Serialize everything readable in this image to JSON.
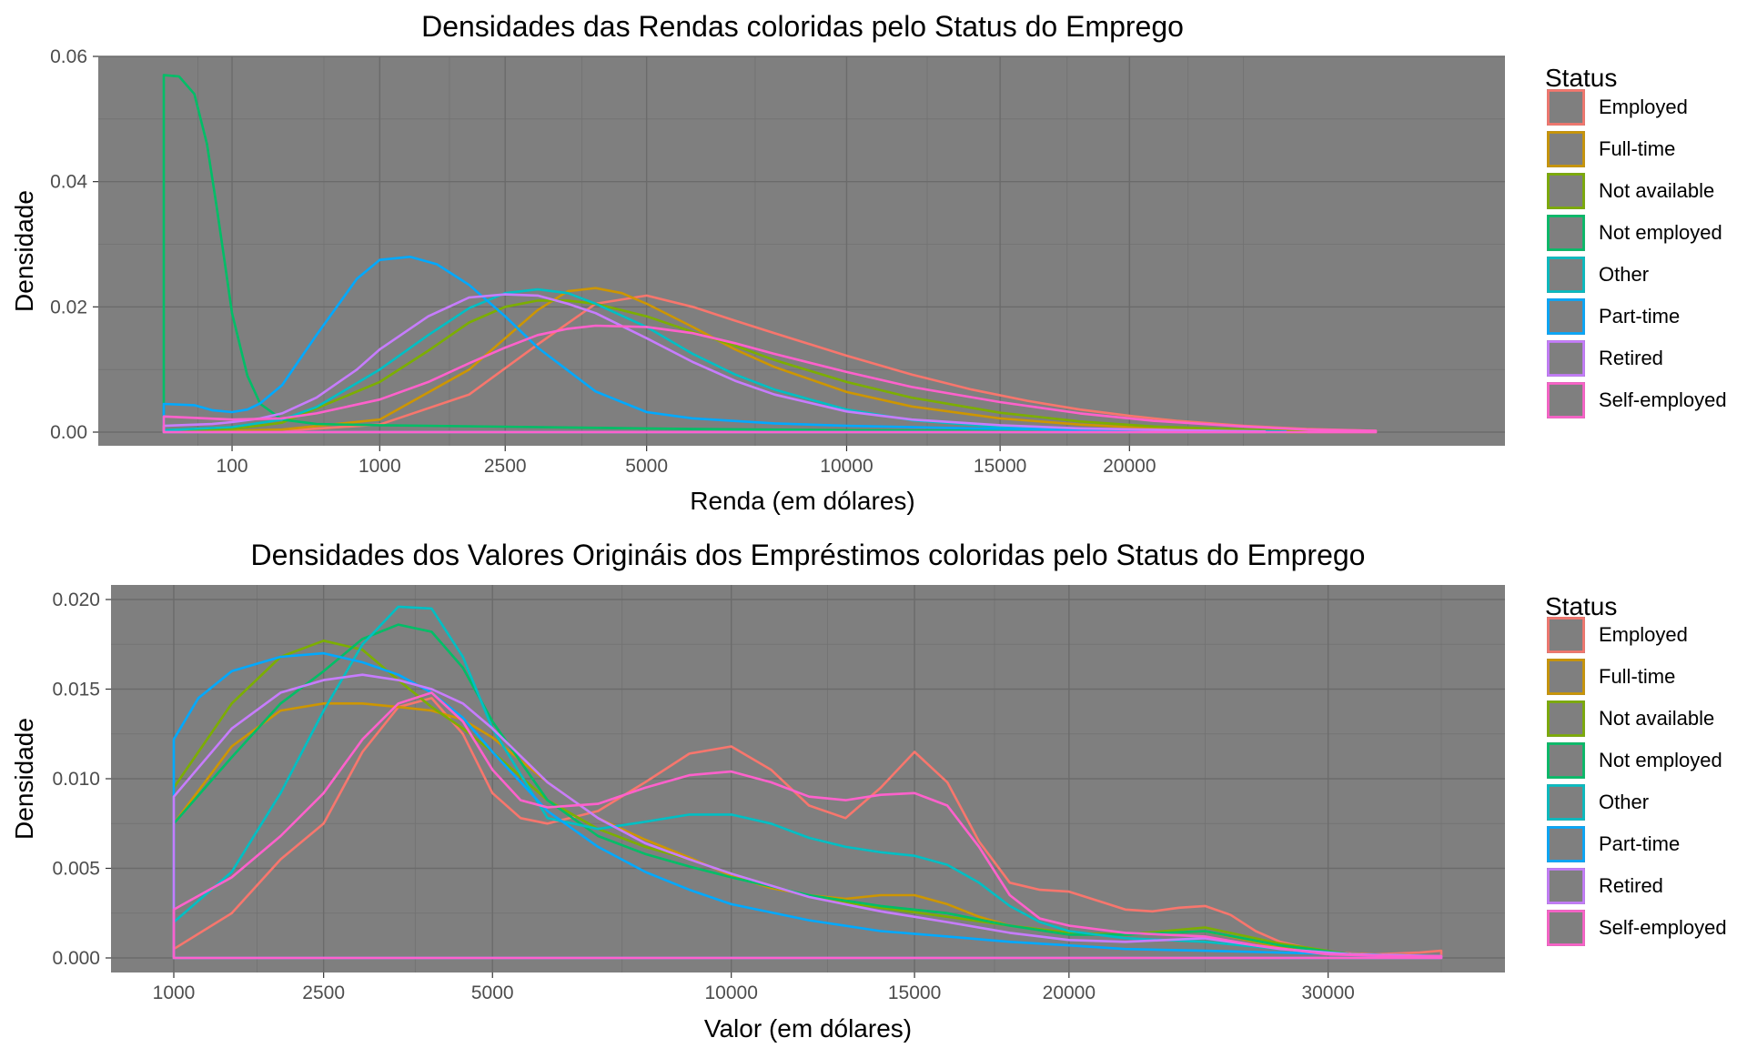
{
  "chart_data": [
    {
      "type": "line",
      "title": "Densidades das Rendas coloridas pelo Status do Emprego",
      "xlabel": "Renda (em dólares)",
      "ylabel": "Densidade",
      "x_scale": "sqrt",
      "xlim": [
        0,
        35000
      ],
      "ylim": [
        0,
        0.06
      ],
      "x_ticks": [
        100,
        1000,
        2500,
        5000,
        10000,
        15000,
        20000
      ],
      "x_tick_labels": [
        "100",
        "1000",
        "2500",
        "5000",
        "10000",
        "15000",
        "20000"
      ],
      "y_ticks": [
        0,
        0.02,
        0.04,
        0.06
      ],
      "y_tick_labels": [
        "0.00",
        "0.02",
        "0.04",
        "0.06"
      ],
      "panel_background": "#7f7f7f",
      "grid": true,
      "legend": {
        "title": "Status",
        "position": "right"
      },
      "series": [
        {
          "name": "Employed",
          "color": "#F8766D",
          "x": [
            0,
            100,
            300,
            1000,
            2000,
            3000,
            4000,
            5000,
            6000,
            7000,
            8000,
            10000,
            12000,
            14000,
            16000,
            18000,
            20000,
            22000,
            25000,
            28000,
            31500
          ],
          "y": [
            0.0003,
            0.0002,
            0.0002,
            0.0012,
            0.006,
            0.014,
            0.0205,
            0.0218,
            0.02,
            0.0178,
            0.0158,
            0.0122,
            0.0092,
            0.0068,
            0.005,
            0.0036,
            0.0026,
            0.0018,
            0.001,
            0.0005,
            0.0002
          ]
        },
        {
          "name": "Full-time",
          "color": "#CD9600",
          "x": [
            0,
            100,
            300,
            1000,
            2000,
            2500,
            3000,
            3500,
            4000,
            4500,
            5000,
            6000,
            7000,
            8000,
            10000,
            12000,
            15000,
            18000,
            21000,
            25000,
            28000
          ],
          "y": [
            0.0002,
            0.0002,
            0.0004,
            0.002,
            0.01,
            0.015,
            0.0195,
            0.0225,
            0.023,
            0.0222,
            0.0205,
            0.0168,
            0.0132,
            0.0104,
            0.0064,
            0.0041,
            0.0022,
            0.0012,
            0.0006,
            0.0002,
            0.0001
          ]
        },
        {
          "name": "Not available",
          "color": "#7CAE00",
          "x": [
            0,
            100,
            300,
            1000,
            1500,
            2000,
            2500,
            3000,
            3500,
            4000,
            5000,
            6000,
            7000,
            8000,
            10000,
            12000,
            15000,
            18000,
            21000,
            25000,
            28000
          ],
          "y": [
            0.0003,
            0.0005,
            0.0015,
            0.008,
            0.013,
            0.0175,
            0.02,
            0.021,
            0.021,
            0.0205,
            0.0185,
            0.016,
            0.0138,
            0.0115,
            0.008,
            0.0055,
            0.0031,
            0.0017,
            0.0009,
            0.0004,
            0.0002
          ]
        },
        {
          "name": "Not employed",
          "color": "#00BE67",
          "x": [
            0,
            5,
            20,
            40,
            60,
            80,
            100,
            150,
            200,
            300,
            500,
            1000,
            3000,
            6000,
            10000,
            15000,
            20000,
            25000
          ],
          "y": [
            0.057,
            0.0568,
            0.054,
            0.046,
            0.036,
            0.027,
            0.019,
            0.009,
            0.0045,
            0.002,
            0.0013,
            0.0011,
            0.0008,
            0.0005,
            0.0003,
            0.0002,
            0.0001,
            0.0001
          ]
        },
        {
          "name": "Other",
          "color": "#00BFC4",
          "x": [
            0,
            100,
            300,
            500,
            1000,
            1500,
            2000,
            2500,
            3000,
            3500,
            4000,
            5000,
            6000,
            7000,
            8000,
            10000,
            12000,
            15000,
            18000,
            21000,
            25000
          ],
          "y": [
            0.0003,
            0.0008,
            0.002,
            0.004,
            0.01,
            0.0155,
            0.0198,
            0.0222,
            0.0228,
            0.0222,
            0.0205,
            0.0168,
            0.0125,
            0.0092,
            0.0068,
            0.0036,
            0.0019,
            0.0008,
            0.0004,
            0.0002,
            0.0001
          ]
        },
        {
          "name": "Part-time",
          "color": "#00A9FF",
          "x": [
            0,
            20,
            50,
            100,
            150,
            200,
            300,
            500,
            800,
            1000,
            1300,
            1600,
            2000,
            2500,
            3000,
            4000,
            5000,
            6000,
            8000,
            10000,
            14000,
            20000,
            27000
          ],
          "y": [
            0.0045,
            0.0043,
            0.0035,
            0.0032,
            0.0036,
            0.0046,
            0.0075,
            0.0155,
            0.0245,
            0.0275,
            0.028,
            0.0268,
            0.0235,
            0.0185,
            0.0135,
            0.0065,
            0.0032,
            0.0022,
            0.0014,
            0.001,
            0.0006,
            0.0003,
            0.0001
          ]
        },
        {
          "name": "Retired",
          "color": "#C77CFF",
          "x": [
            0,
            50,
            100,
            200,
            300,
            500,
            800,
            1000,
            1500,
            2000,
            2500,
            3000,
            3500,
            4000,
            5000,
            6000,
            7000,
            8000,
            10000,
            12000,
            15000,
            18000,
            22000,
            26000
          ],
          "y": [
            0.001,
            0.0013,
            0.0016,
            0.0022,
            0.003,
            0.0055,
            0.01,
            0.0132,
            0.0185,
            0.0215,
            0.022,
            0.0218,
            0.0205,
            0.019,
            0.015,
            0.0112,
            0.0082,
            0.006,
            0.0033,
            0.002,
            0.0011,
            0.0006,
            0.0003,
            0.0001
          ]
        },
        {
          "name": "Self-employed",
          "color": "#FF61CC",
          "x": [
            0,
            100,
            300,
            500,
            1000,
            1500,
            2000,
            2500,
            3000,
            3500,
            4000,
            5000,
            6000,
            7000,
            8000,
            10000,
            12000,
            15000,
            18000,
            21000,
            25000,
            28000,
            31500
          ],
          "y": [
            0.0025,
            0.002,
            0.0022,
            0.003,
            0.0052,
            0.008,
            0.011,
            0.0135,
            0.0155,
            0.0165,
            0.017,
            0.0168,
            0.0158,
            0.0142,
            0.0125,
            0.0096,
            0.0072,
            0.0048,
            0.003,
            0.0018,
            0.0009,
            0.0004,
            0.0002
          ]
        }
      ]
    },
    {
      "type": "line",
      "title": "Densidades dos Valores Origináis dos Empréstimos coloridas pelo Status do Emprego",
      "xlabel": "Valor (em dólares)",
      "ylabel": "Densidade",
      "x_scale": "sqrt",
      "xlim": [
        1000,
        35000
      ],
      "ylim": [
        0,
        0.02
      ],
      "x_ticks": [
        1000,
        2500,
        5000,
        10000,
        15000,
        20000,
        30000
      ],
      "x_tick_labels": [
        "1000",
        "2500",
        "5000",
        "10000",
        "15000",
        "20000",
        "30000"
      ],
      "y_ticks": [
        0,
        0.005,
        0.01,
        0.015,
        0.02
      ],
      "y_tick_labels": [
        "0.000",
        "0.005",
        "0.010",
        "0.015",
        "0.020"
      ],
      "panel_background": "#7f7f7f",
      "grid": true,
      "legend": {
        "title": "Status",
        "position": "right"
      },
      "series": [
        {
          "name": "Employed",
          "color": "#F8766D",
          "x": [
            1000,
            1500,
            2000,
            2500,
            3000,
            3500,
            4000,
            4500,
            5000,
            5500,
            6000,
            7000,
            8000,
            9000,
            10000,
            11000,
            12000,
            13000,
            14000,
            15000,
            16000,
            17000,
            18000,
            19000,
            20000,
            21000,
            22000,
            23000,
            24000,
            25000,
            26000,
            27000,
            28000,
            30000,
            32000,
            34000,
            35000
          ],
          "y": [
            0.0005,
            0.0025,
            0.0055,
            0.0075,
            0.0115,
            0.014,
            0.0145,
            0.0125,
            0.0092,
            0.0078,
            0.0075,
            0.0082,
            0.0098,
            0.0114,
            0.0118,
            0.0105,
            0.0085,
            0.0078,
            0.0095,
            0.0115,
            0.0098,
            0.0065,
            0.0042,
            0.0038,
            0.0037,
            0.0032,
            0.0027,
            0.0026,
            0.0028,
            0.0029,
            0.0024,
            0.0015,
            0.0009,
            0.0003,
            0.0002,
            0.0003,
            0.0004
          ]
        },
        {
          "name": "Full-time",
          "color": "#CD9600",
          "x": [
            1000,
            1500,
            2000,
            2500,
            3000,
            3500,
            4000,
            4500,
            5000,
            6000,
            7000,
            8000,
            9000,
            10000,
            11000,
            12000,
            13000,
            14000,
            15000,
            16000,
            17000,
            18000,
            20000,
            22000,
            25000,
            28000,
            31000,
            35000
          ],
          "y": [
            0.0075,
            0.0118,
            0.0138,
            0.0142,
            0.0142,
            0.014,
            0.0138,
            0.0133,
            0.0123,
            0.0098,
            0.0078,
            0.0066,
            0.0056,
            0.0046,
            0.0039,
            0.0035,
            0.0033,
            0.0035,
            0.0035,
            0.003,
            0.0023,
            0.0018,
            0.0014,
            0.0013,
            0.0015,
            0.0006,
            0.0002,
            0.0001
          ]
        },
        {
          "name": "Not available",
          "color": "#7CAE00",
          "x": [
            1000,
            1500,
            2000,
            2500,
            3000,
            3500,
            4000,
            4500,
            5000,
            6000,
            7000,
            8000,
            9000,
            10000,
            12000,
            14000,
            16000,
            18000,
            20000,
            22000,
            25000,
            28000,
            31000,
            35000
          ],
          "y": [
            0.0095,
            0.0142,
            0.0168,
            0.0177,
            0.0172,
            0.0155,
            0.014,
            0.0128,
            0.0115,
            0.0088,
            0.0072,
            0.0062,
            0.0055,
            0.0047,
            0.0034,
            0.0028,
            0.0023,
            0.0018,
            0.0014,
            0.0013,
            0.0017,
            0.0008,
            0.0002,
            0.0001
          ]
        },
        {
          "name": "Not employed",
          "color": "#00BE67",
          "x": [
            1000,
            1500,
            2000,
            2500,
            3000,
            3500,
            4000,
            4500,
            5000,
            6000,
            7000,
            8000,
            9000,
            10000,
            12000,
            14000,
            16000,
            18000,
            20000,
            22000,
            25000,
            28000,
            31000,
            35000
          ],
          "y": [
            0.0075,
            0.0112,
            0.0142,
            0.016,
            0.0178,
            0.0186,
            0.0182,
            0.0162,
            0.0132,
            0.0088,
            0.0068,
            0.0058,
            0.0051,
            0.0045,
            0.0035,
            0.0029,
            0.0025,
            0.0018,
            0.0013,
            0.0013,
            0.0015,
            0.0007,
            0.0002,
            0.0001
          ]
        },
        {
          "name": "Other",
          "color": "#00BFC4",
          "x": [
            1000,
            1500,
            2000,
            2500,
            3000,
            3500,
            4000,
            4500,
            5000,
            6000,
            7000,
            8000,
            9000,
            10000,
            11000,
            12000,
            13000,
            14000,
            15000,
            16000,
            17000,
            18000,
            19000,
            20000,
            22000,
            25000,
            28000,
            31000,
            35000
          ],
          "y": [
            0.002,
            0.0048,
            0.0092,
            0.0138,
            0.0175,
            0.0196,
            0.0195,
            0.0168,
            0.0128,
            0.0078,
            0.0072,
            0.0076,
            0.008,
            0.008,
            0.0075,
            0.0067,
            0.0062,
            0.0059,
            0.0057,
            0.0052,
            0.0042,
            0.0029,
            0.002,
            0.0015,
            0.0011,
            0.0009,
            0.0005,
            0.0002,
            0.0001
          ]
        },
        {
          "name": "Part-time",
          "color": "#00A9FF",
          "x": [
            1000,
            1200,
            1500,
            2000,
            2500,
            3000,
            3500,
            4000,
            4500,
            5000,
            6000,
            7000,
            8000,
            9000,
            10000,
            12000,
            14000,
            16000,
            18000,
            20000,
            22000,
            25000,
            28000,
            31000,
            35000
          ],
          "y": [
            0.0122,
            0.0145,
            0.016,
            0.0168,
            0.017,
            0.0165,
            0.0158,
            0.0148,
            0.0134,
            0.0115,
            0.0082,
            0.0062,
            0.0048,
            0.0038,
            0.003,
            0.0021,
            0.0015,
            0.0012,
            0.0009,
            0.0007,
            0.0005,
            0.0004,
            0.0003,
            0.0002,
            0.0001
          ]
        },
        {
          "name": "Retired",
          "color": "#C77CFF",
          "x": [
            1000,
            1500,
            2000,
            2500,
            3000,
            3500,
            4000,
            4500,
            5000,
            6000,
            7000,
            8000,
            9000,
            10000,
            12000,
            14000,
            16000,
            18000,
            20000,
            22000,
            25000,
            28000,
            31000,
            35000
          ],
          "y": [
            0.009,
            0.0128,
            0.0148,
            0.0155,
            0.0158,
            0.0155,
            0.015,
            0.0142,
            0.0128,
            0.0098,
            0.0078,
            0.0064,
            0.0055,
            0.0047,
            0.0034,
            0.0026,
            0.002,
            0.0014,
            0.001,
            0.0009,
            0.0011,
            0.0005,
            0.0002,
            0.0001
          ]
        },
        {
          "name": "Self-employed",
          "color": "#FF61CC",
          "x": [
            1000,
            1500,
            2000,
            2500,
            3000,
            3500,
            4000,
            4500,
            5000,
            5500,
            6000,
            7000,
            8000,
            9000,
            10000,
            11000,
            12000,
            13000,
            14000,
            15000,
            16000,
            17000,
            18000,
            19000,
            20000,
            22000,
            25000,
            27000,
            30000,
            33000,
            35000
          ],
          "y": [
            0.0027,
            0.0045,
            0.0068,
            0.0092,
            0.0122,
            0.0142,
            0.0148,
            0.0132,
            0.0105,
            0.0088,
            0.0084,
            0.0086,
            0.0095,
            0.0102,
            0.0104,
            0.0098,
            0.009,
            0.0088,
            0.0091,
            0.0092,
            0.0085,
            0.0062,
            0.0035,
            0.0022,
            0.0018,
            0.0014,
            0.0012,
            0.0007,
            0.0002,
            0.0001,
            0.0001
          ]
        }
      ]
    }
  ]
}
